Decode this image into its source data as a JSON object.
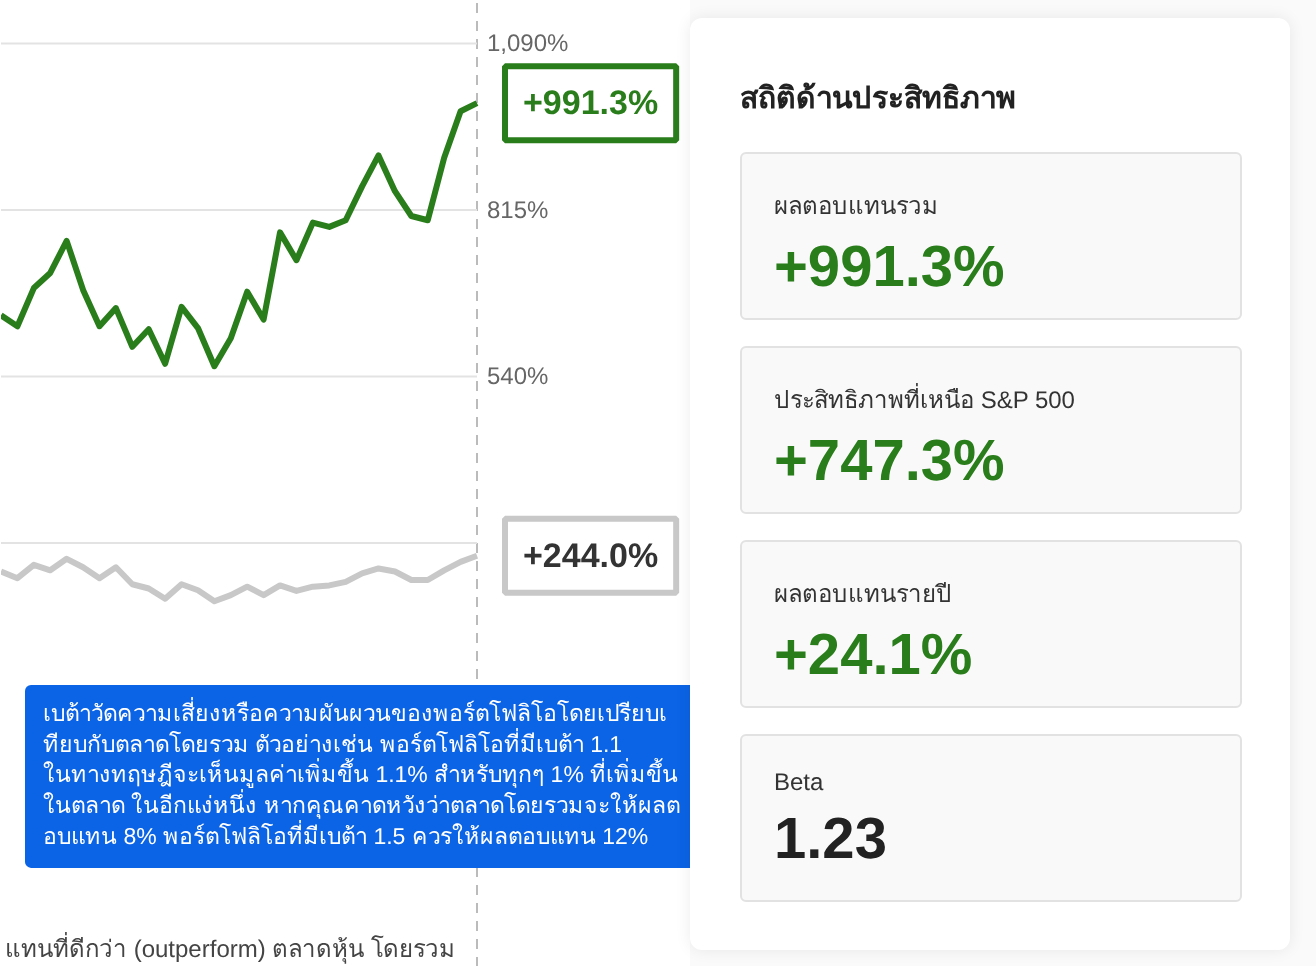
{
  "chart_data": [
    {
      "type": "line",
      "categories": [
        null,
        null,
        null,
        null,
        null,
        null,
        null,
        null,
        null,
        null,
        null,
        null,
        null,
        null,
        null,
        null,
        null,
        null,
        null,
        null,
        null,
        null,
        null,
        null,
        null,
        null,
        null,
        null,
        null,
        null
      ],
      "series": [
        {
          "color": "#2a7d1b",
          "values": [
            641,
            623,
            686,
            711,
            764,
            683,
            623,
            653,
            589,
            618,
            561,
            655,
            620,
            557,
            603,
            680,
            634,
            778,
            732,
            794,
            787,
            798,
            854,
            905,
            846,
            805,
            798,
            901,
            978,
            991.3
          ],
          "value_labels": [
            null,
            null,
            null,
            null,
            null,
            null,
            null,
            null,
            null,
            null,
            null,
            null,
            null,
            null,
            null,
            null,
            null,
            null,
            null,
            null,
            null,
            null,
            null,
            null,
            null,
            null,
            null,
            null,
            null,
            "+991.3%"
          ]
        },
        {
          "color": "#c8c8c8",
          "values": [
            218,
            207,
            229,
            220,
            239,
            225,
            207,
            225,
            197,
            190,
            173,
            197,
            187,
            169,
            179,
            193,
            179,
            195,
            186,
            193,
            195,
            201,
            215,
            223,
            218,
            204,
            204,
            220,
            234,
            244.0
          ],
          "value_labels": [
            null,
            null,
            null,
            null,
            null,
            null,
            null,
            null,
            null,
            null,
            null,
            null,
            null,
            null,
            null,
            null,
            null,
            null,
            null,
            null,
            null,
            null,
            null,
            null,
            null,
            null,
            null,
            null,
            null,
            "+244.0%"
          ]
        }
      ],
      "ylim": [
        -435,
        1160
      ],
      "yticks": [
        {
          "value": 265,
          "label": null
        },
        {
          "value": 540,
          "label": "540%"
        },
        {
          "value": 815,
          "label": "815%"
        },
        {
          "value": 1090,
          "label": "1,090%"
        }
      ],
      "tick_labels": "y",
      "grid": "y",
      "marker": "none",
      "line_style": "solid",
      "annotations": [
        "เบต้าวัดความเสี่ยงหรือความผันผวนของพอร์ตโฟลิโอโดยเปรียบเทียบกับตลาดโดยรวม ตัวอย่างเช่น พอร์ตโฟลิโอที่มีเบต้า 1.1 ในทางทฤษฎีจะเห็นมูลค่าเพิ่มขึ้น 1.1% สำหรับทุกๆ 1% ที่เพิ่มขึ้นในตลาด ในอีกแง่หนึ่ง หากคุณคาดหวังว่าตลาดโดยรวมจะให้ผลตอบแทน 8% พอร์ตโฟลิโอที่มีเบต้า 1.5 ควรให้ผลตอบแทน 12%",
        "แทนที่ดีกว่า (outperform) ตลาดหุ้น โดยรวม"
      ]
    },
    {
      "type": "other",
      "title": "สถิติด้านประสิทธิภาพ",
      "annotations": [
        "ผลตอบแทนรวม",
        "+991.3%",
        "ประสิทธิภาพที่เหนือ S&P 500",
        "+747.3%",
        "ผลตอบแทนรายปี",
        "+24.1%",
        "Beta",
        "1.23"
      ]
    }
  ]
}
